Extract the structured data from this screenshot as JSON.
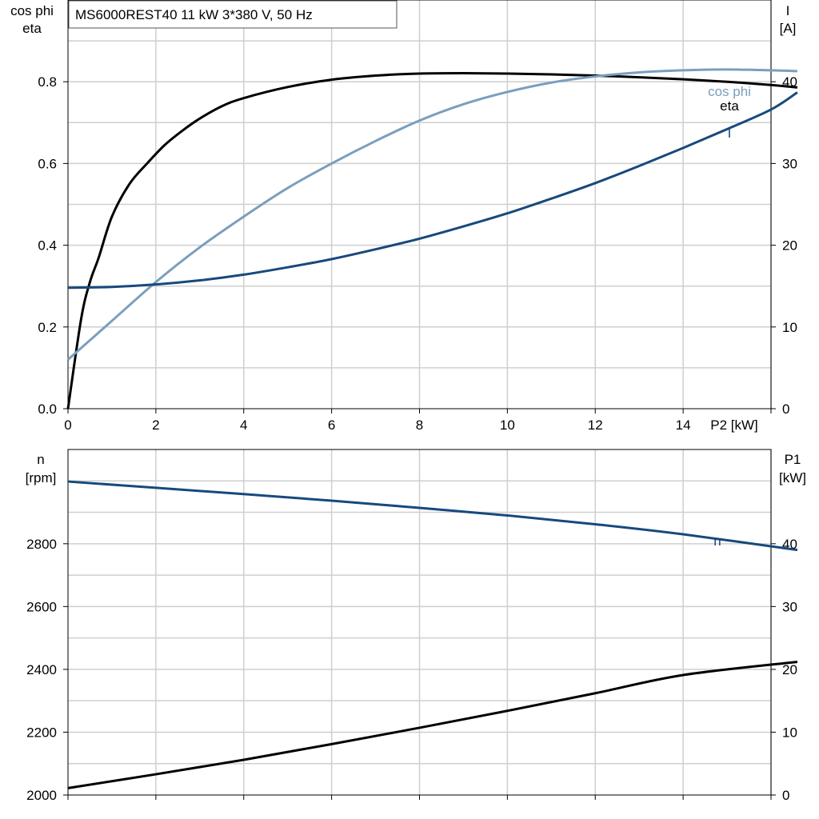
{
  "title": "MS6000REST40   11 kW   3*380 V, 50 Hz",
  "colors": {
    "eta": "#000000",
    "cos_phi": "#7b9ebd",
    "current": "#17497c",
    "speed": "#17497c",
    "p1": "#000000",
    "grid": "#cfcfcf"
  },
  "chart_data": [
    {
      "type": "line",
      "x_axis": {
        "label": "P2 [kW]",
        "range": [
          0,
          16
        ],
        "ticks": [
          "0",
          "2",
          "4",
          "6",
          "8",
          "10",
          "12",
          "14"
        ]
      },
      "y_left": {
        "label_line1": "cos phi",
        "label_line2": "eta",
        "range": [
          0,
          1.0
        ],
        "ticks": [
          "0.0",
          "0.2",
          "0.4",
          "0.6",
          "0.8"
        ]
      },
      "y_right": {
        "label_line1": "I",
        "label_line2": "[A]",
        "range": [
          0,
          50
        ],
        "ticks": [
          "0",
          "10",
          "20",
          "30",
          "40"
        ]
      },
      "grid": true,
      "series": [
        {
          "name": "eta",
          "axis": "left",
          "color": "#000000",
          "x": [
            0,
            0.3,
            0.5,
            0.7,
            1.0,
            1.4,
            1.8,
            2.2,
            2.6,
            3.0,
            3.5,
            4.0,
            5.0,
            6.0,
            7.0,
            8.0,
            9.0,
            10.0,
            11.0,
            12.0,
            13.0,
            14.0,
            15.0,
            16.0,
            16.6
          ],
          "y": [
            0.0,
            0.22,
            0.31,
            0.37,
            0.47,
            0.55,
            0.6,
            0.645,
            0.68,
            0.71,
            0.74,
            0.76,
            0.787,
            0.805,
            0.815,
            0.82,
            0.821,
            0.82,
            0.818,
            0.815,
            0.811,
            0.806,
            0.8,
            0.792,
            0.786
          ]
        },
        {
          "name": "cos phi",
          "axis": "left",
          "color": "#7b9ebd",
          "x": [
            0,
            1,
            2,
            3,
            4,
            5,
            6,
            7,
            8,
            9,
            10,
            11,
            12,
            13,
            14,
            15,
            16,
            16.6
          ],
          "y": [
            0.12,
            0.215,
            0.31,
            0.395,
            0.47,
            0.54,
            0.6,
            0.655,
            0.705,
            0.745,
            0.775,
            0.798,
            0.813,
            0.823,
            0.828,
            0.83,
            0.828,
            0.826
          ]
        },
        {
          "name": "I",
          "axis": "right",
          "color": "#17497c",
          "x": [
            0,
            1,
            2,
            3,
            4,
            5,
            6,
            7,
            8,
            9,
            10,
            11,
            12,
            13,
            14,
            15,
            16,
            16.6
          ],
          "y": [
            14.8,
            14.9,
            15.2,
            15.7,
            16.4,
            17.3,
            18.3,
            19.5,
            20.8,
            22.3,
            23.9,
            25.7,
            27.6,
            29.7,
            31.9,
            34.2,
            36.6,
            38.7
          ]
        }
      ]
    },
    {
      "type": "line",
      "x_axis": {
        "label": "",
        "range": [
          0,
          16
        ],
        "ticks": []
      },
      "y_left": {
        "label_line1": "n",
        "label_line2": "[rpm]",
        "range": [
          2000,
          3100
        ],
        "ticks": [
          "2000",
          "2200",
          "2400",
          "2600",
          "2800"
        ]
      },
      "y_right": {
        "label_line1": "P1",
        "label_line2": "[kW]",
        "range": [
          0,
          55
        ],
        "ticks": [
          "0",
          "10",
          "20",
          "30",
          "40"
        ]
      },
      "grid": true,
      "series": [
        {
          "name": "n",
          "axis": "left",
          "color": "#17497c",
          "x": [
            0,
            2,
            4,
            6,
            8,
            10,
            12,
            14,
            16.6
          ],
          "y": [
            2998,
            2978,
            2958,
            2937,
            2914,
            2890,
            2862,
            2830,
            2780
          ]
        },
        {
          "name": "",
          "axis": "right",
          "color": "#000000",
          "x": [
            0,
            2,
            4,
            6,
            8,
            10,
            12,
            14,
            16.6
          ],
          "y": [
            1.1,
            3.3,
            5.6,
            8.1,
            10.7,
            13.4,
            16.2,
            19.1,
            21.2
          ]
        }
      ]
    }
  ],
  "series_labels": {
    "cos_phi": "cos phi",
    "eta": "eta",
    "current": "I",
    "speed": "n"
  }
}
